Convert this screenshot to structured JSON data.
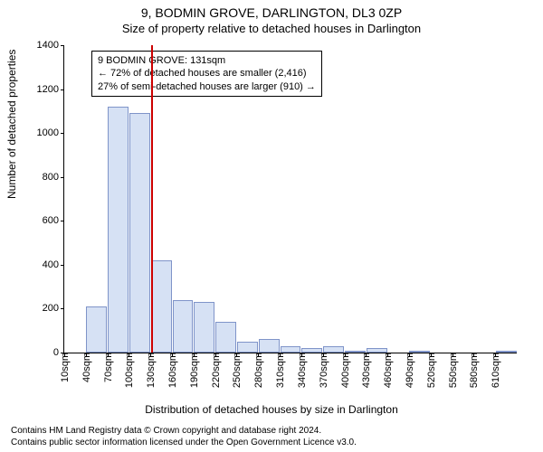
{
  "title": {
    "line1": "9, BODMIN GROVE, DARLINGTON, DL3 0ZP",
    "line2": "Size of property relative to detached houses in Darlington"
  },
  "ylabel": "Number of detached properties",
  "xlabel": "Distribution of detached houses by size in Darlington",
  "chart": {
    "type": "bar",
    "ylim": [
      0,
      1400
    ],
    "ytick_step": 200,
    "yticks": [
      0,
      200,
      400,
      600,
      800,
      1000,
      1200,
      1400
    ],
    "x_start": 10,
    "x_step": 30,
    "x_count": 21,
    "x_labels": [
      "10sqm",
      "40sqm",
      "70sqm",
      "100sqm",
      "130sqm",
      "160sqm",
      "190sqm",
      "220sqm",
      "250sqm",
      "280sqm",
      "310sqm",
      "340sqm",
      "370sqm",
      "400sqm",
      "430sqm",
      "460sqm",
      "490sqm",
      "520sqm",
      "550sqm",
      "580sqm",
      "610sqm"
    ],
    "values": [
      0,
      210,
      1120,
      1090,
      420,
      240,
      230,
      140,
      50,
      60,
      30,
      20,
      30,
      5,
      20,
      0,
      5,
      0,
      0,
      0,
      5
    ],
    "bar_fill": "#d6e1f4",
    "bar_stroke": "#7f94c9",
    "bar_width_ratio": 0.96,
    "background": "#ffffff",
    "marker": {
      "x_value": 131,
      "color": "#cc0000"
    }
  },
  "annotation": {
    "line1": "9 BODMIN GROVE: 131sqm",
    "line2": "← 72% of detached houses are smaller (2,416)",
    "line3": "27% of semi-detached houses are larger (910) →"
  },
  "footer": {
    "line1": "Contains HM Land Registry data © Crown copyright and database right 2024.",
    "line2": "Contains public sector information licensed under the Open Government Licence v3.0."
  }
}
